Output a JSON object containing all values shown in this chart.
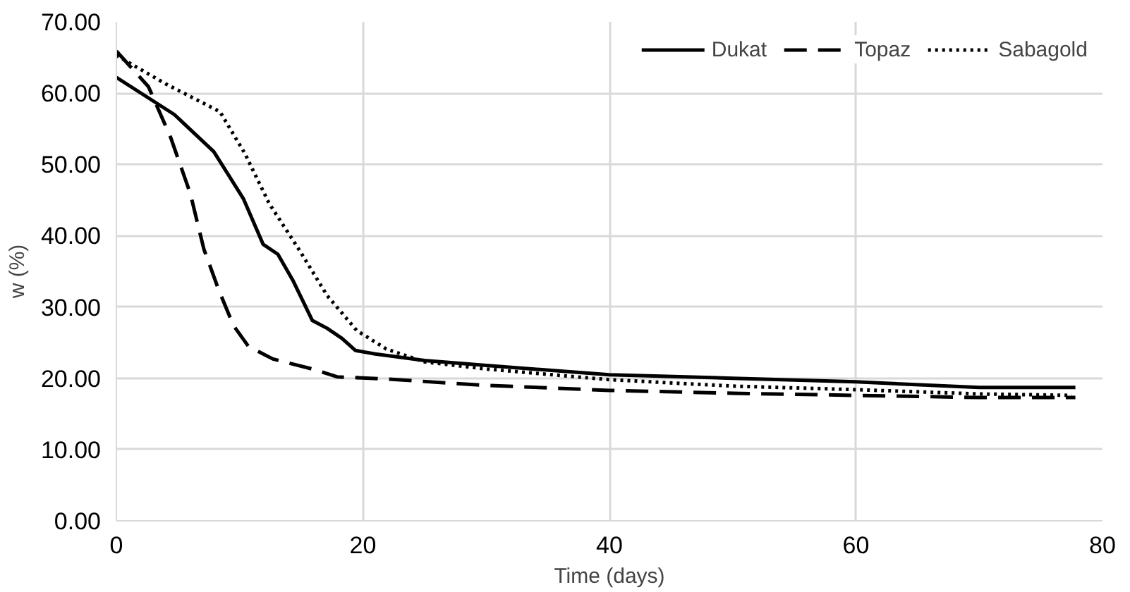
{
  "chart_data": {
    "type": "line",
    "xlabel": "Time (days)",
    "ylabel": "w (%)",
    "xlim": [
      0,
      80
    ],
    "xticks": [
      0,
      20,
      40,
      60,
      80
    ],
    "ylim": [
      0,
      70
    ],
    "yticks": [
      {
        "value": 0,
        "label": "0.00"
      },
      {
        "value": 10,
        "label": "10.00"
      },
      {
        "value": 20,
        "label": "20.00"
      },
      {
        "value": 30,
        "label": "30.00"
      },
      {
        "value": 40,
        "label": "40.00"
      },
      {
        "value": 50,
        "label": "50.00"
      },
      {
        "value": 60,
        "label": "60.00"
      },
      {
        "value": 70,
        "label": "70.00"
      }
    ],
    "grid": true,
    "legend": "top right",
    "marker": "none",
    "series": [
      {
        "name": "Dukat",
        "color": "#000000",
        "line_style": "solid",
        "x": [
          0,
          4.7,
          7.9,
          10.3,
          11.9,
          13.1,
          14.3,
          15.9,
          17.1,
          18.3,
          19.4,
          21,
          25,
          30,
          40,
          50,
          60,
          70,
          77.8
        ],
        "values": [
          62.2,
          57.0,
          51.8,
          45.2,
          38.8,
          37.4,
          33.8,
          28.1,
          27.0,
          25.6,
          23.9,
          23.4,
          22.5,
          21.8,
          20.5,
          20.0,
          19.5,
          18.7,
          18.7
        ]
      },
      {
        "name": "Topaz",
        "color": "#000000",
        "line_style": "dashed",
        "x": [
          0,
          2.6,
          4.4,
          6.0,
          7.1,
          8.3,
          9.5,
          10.7,
          12.7,
          15.9,
          17.9,
          21.8,
          30,
          40,
          50,
          60,
          70,
          77.8
        ],
        "values": [
          65.9,
          60.9,
          53.8,
          45.9,
          38.1,
          32.4,
          27.4,
          24.5,
          22.7,
          21.3,
          20.2,
          19.9,
          19.0,
          18.3,
          17.9,
          17.6,
          17.3,
          17.3
        ]
      },
      {
        "name": "Sabagold",
        "color": "#000000",
        "line_style": "dotted",
        "x": [
          0,
          4.0,
          8.4,
          10.4,
          12.4,
          14.8,
          17.1,
          19.5,
          21.9,
          25,
          30,
          40,
          50,
          60,
          70,
          77.5
        ],
        "values": [
          65.3,
          61.3,
          57.4,
          51.6,
          44.5,
          38.1,
          31.6,
          26.7,
          24.1,
          22.3,
          21.3,
          19.8,
          18.9,
          18.4,
          17.8,
          17.6
        ]
      }
    ]
  }
}
